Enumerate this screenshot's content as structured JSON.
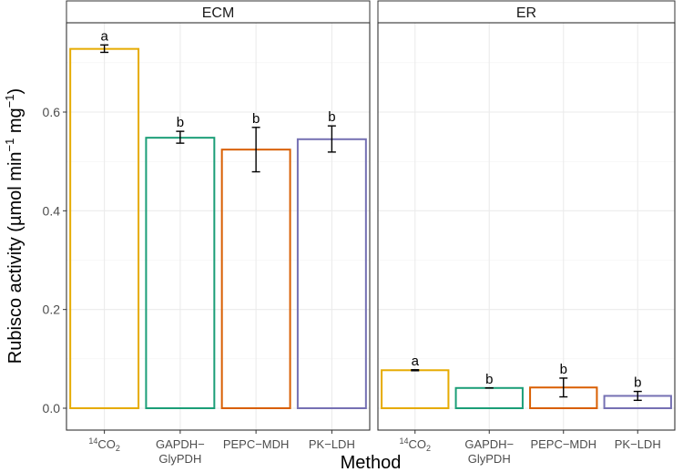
{
  "chart_data": {
    "type": "bar",
    "title": "",
    "xlabel": "Method",
    "ylabel": {
      "text": "Rubisco activity",
      "unit_prefix": "(µmol min",
      "unit_mid": " mg",
      "unit_suffix": ")",
      "exponent": "−1"
    },
    "ylim": [
      0,
      0.74
    ],
    "yticks": [
      "0.0",
      "0.2",
      "0.4",
      "0.6"
    ],
    "ytick_values": [
      0.0,
      0.2,
      0.4,
      0.6
    ],
    "grid": true,
    "categories": [
      {
        "main": "CO",
        "sup": "14",
        "sub": "2",
        "line2": ""
      },
      {
        "main": "GAPDH−",
        "sup": "",
        "sub": "",
        "line2": "GlyPDH"
      },
      {
        "main": "PEPC−MDH",
        "sup": "",
        "sub": "",
        "line2": ""
      },
      {
        "main": "PK−LDH",
        "sup": "",
        "sub": "",
        "line2": ""
      }
    ],
    "colors": [
      "#E6AB02",
      "#1B9E77",
      "#D95F02",
      "#7570B3"
    ],
    "panels": [
      {
        "name": "ECM",
        "values": [
          0.728,
          0.548,
          0.524,
          0.545
        ],
        "err_low": [
          0.721,
          0.537,
          0.479,
          0.519
        ],
        "err_high": [
          0.736,
          0.561,
          0.569,
          0.572
        ],
        "letters": [
          "a",
          "b",
          "b",
          "b"
        ]
      },
      {
        "name": "ER",
        "values": [
          0.077,
          0.041,
          0.042,
          0.025
        ],
        "err_low": [
          0.076,
          0.041,
          0.023,
          0.016
        ],
        "err_high": [
          0.078,
          0.041,
          0.061,
          0.034
        ],
        "letters": [
          "a",
          "b",
          "b",
          "b"
        ]
      }
    ]
  }
}
